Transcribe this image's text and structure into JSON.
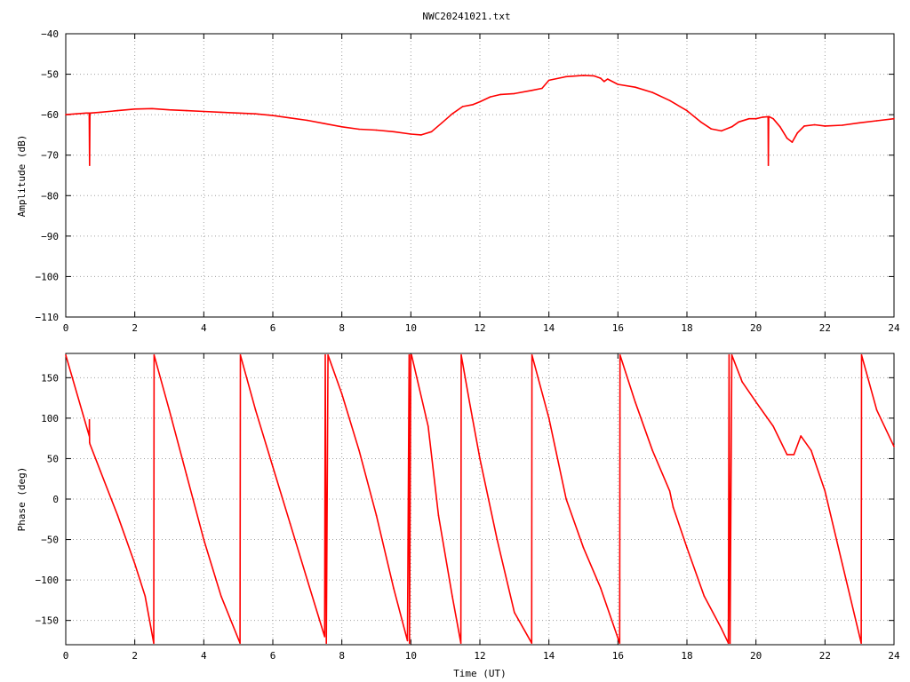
{
  "chart_data": [
    {
      "type": "line",
      "title": "NWC20241021.txt",
      "xlabel": "",
      "ylabel": "Amplitude (dB)",
      "xlim": [
        0,
        24
      ],
      "ylim": [
        -110,
        -40
      ],
      "xticks": [
        "0",
        "2",
        "4",
        "6",
        "8",
        "10",
        "12",
        "14",
        "16",
        "18",
        "20",
        "22",
        "24"
      ],
      "yticks": [
        "−40",
        "−50",
        "−60",
        "−70",
        "−80",
        "−90",
        "−100",
        "−110"
      ],
      "grid": true,
      "line_color": "#ff0000",
      "series": [
        {
          "x": [
            0,
            0.3,
            0.6,
            0.68,
            0.69,
            0.7,
            0.71,
            1,
            1.5,
            2,
            2.5,
            3,
            3.5,
            4,
            4.5,
            5,
            5.5,
            6,
            6.5,
            7,
            7.5,
            8,
            8.5,
            9,
            9.5,
            10,
            10.3,
            10.6,
            10.9,
            11.2,
            11.5,
            11.8,
            12,
            12.3,
            12.6,
            13,
            13.5,
            13.8,
            14,
            14.5,
            15,
            15.3,
            15.5,
            15.6,
            15.7,
            16,
            16.5,
            17,
            17.5,
            18,
            18.4,
            18.7,
            19,
            19.3,
            19.5,
            19.8,
            20,
            20.2,
            20.35,
            20.36,
            20.37,
            20.38,
            20.5,
            20.7,
            20.9,
            21.05,
            21.2,
            21.4,
            21.7,
            22,
            22.5,
            23,
            23.5,
            24
          ],
          "y": [
            -60,
            -59.8,
            -59.6,
            -59.6,
            -72.5,
            -59.6,
            -59.6,
            -59.4,
            -59.0,
            -58.6,
            -58.5,
            -58.8,
            -59.0,
            -59.2,
            -59.4,
            -59.6,
            -59.8,
            -60.2,
            -60.8,
            -61.4,
            -62.2,
            -63.0,
            -63.6,
            -63.8,
            -64.2,
            -64.8,
            -65.0,
            -64.2,
            -62.0,
            -59.8,
            -58.0,
            -57.5,
            -56.8,
            -55.6,
            -55.0,
            -54.8,
            -54.0,
            -53.5,
            -51.5,
            -50.6,
            -50.3,
            -50.4,
            -51.0,
            -51.8,
            -51.2,
            -52.5,
            -53.2,
            -54.5,
            -56.5,
            -59.0,
            -61.8,
            -63.5,
            -64.0,
            -63.0,
            -61.8,
            -61.0,
            -61.0,
            -60.6,
            -60.5,
            -72.5,
            -60.5,
            -60.5,
            -61.0,
            -63.0,
            -65.8,
            -66.8,
            -64.5,
            -62.8,
            -62.5,
            -62.8,
            -62.6,
            -62.0,
            -61.5,
            -61.0
          ]
        }
      ]
    },
    {
      "type": "line",
      "title": "",
      "xlabel": "Time (UT)",
      "ylabel": "Phase (deg)",
      "xlim": [
        0,
        24
      ],
      "ylim": [
        -180,
        180
      ],
      "xticks": [
        "0",
        "2",
        "4",
        "6",
        "8",
        "10",
        "12",
        "14",
        "16",
        "18",
        "20",
        "22",
        "24"
      ],
      "yticks": [
        "150",
        "100",
        "50",
        "0",
        "−50",
        "−100",
        "−150"
      ],
      "yvalues": [
        150,
        100,
        50,
        0,
        -50,
        -100,
        -150
      ],
      "grid": true,
      "line_color": "#ff0000",
      "series": [
        {
          "x": [
            0,
            0.68,
            0.685,
            0.69,
            0.7,
            1.0,
            1.5,
            2.0,
            2.3,
            2.55,
            2.56,
            3.0,
            3.5,
            4.0,
            4.5,
            5.05,
            5.06,
            5.5,
            6.0,
            6.5,
            7.0,
            7.5,
            7.52,
            7.55,
            7.6,
            8.0,
            8.5,
            9.0,
            9.5,
            9.9,
            9.95,
            9.96,
            10.0,
            10.02,
            10.5,
            10.8,
            11.2,
            11.45,
            11.46,
            11.7,
            12.0,
            12.5,
            13.0,
            13.5,
            13.51,
            14.0,
            14.5,
            15.0,
            15.5,
            16.05,
            16.06,
            16.5,
            17.0,
            17.5,
            17.6,
            18.0,
            18.5,
            19.0,
            19.2,
            19.22,
            19.25,
            19.3,
            19.6,
            20.0,
            20.5,
            20.9,
            21.1,
            21.3,
            21.6,
            22.0,
            22.5,
            23.05,
            23.06,
            23.5,
            24.0
          ],
          "y": [
            178,
            78,
            98,
            70,
            68,
            35,
            -20,
            -80,
            -120,
            -178,
            178,
            110,
            30,
            -50,
            -120,
            -178,
            178,
            110,
            40,
            -30,
            -100,
            -170,
            178,
            -178,
            178,
            130,
            60,
            -20,
            -110,
            -175,
            178,
            -178,
            178,
            178,
            90,
            -20,
            -120,
            -178,
            178,
            120,
            50,
            -50,
            -140,
            -178,
            178,
            100,
            0,
            -60,
            -110,
            -178,
            178,
            120,
            60,
            10,
            -10,
            -60,
            -120,
            -160,
            -178,
            178,
            -178,
            178,
            145,
            120,
            90,
            55,
            55,
            78,
            60,
            10,
            -80,
            -178,
            178,
            110,
            65
          ]
        }
      ]
    }
  ]
}
